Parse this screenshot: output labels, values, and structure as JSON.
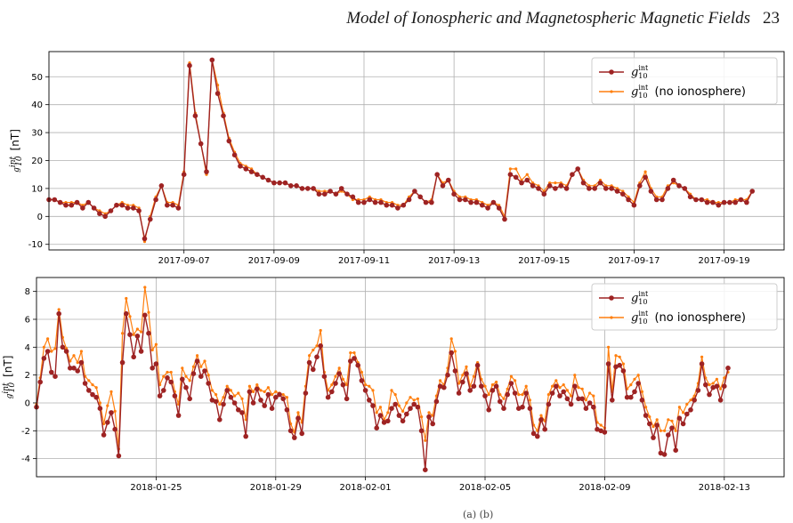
{
  "header": {
    "running_title": "Model of Ionospheric and Magnetospheric Magnetic Fields",
    "page_number": "23"
  },
  "caption_fragment": "(a) (b)",
  "colors": {
    "series_with": "#9e2323",
    "series_without": "#ff7f0e",
    "grid": "#b0b0b0"
  },
  "chart_data": [
    {
      "type": "line",
      "ylabel": "g_10^int [nT]",
      "ylim": [
        -12,
        59
      ],
      "yticks": [
        -10,
        0,
        10,
        20,
        30,
        40,
        50
      ],
      "x_range": [
        "2017-09-04T00:00",
        "2017-09-20T08:00"
      ],
      "x_step_hours": 3,
      "xticks": [
        "2017-09-07",
        "2017-09-09",
        "2017-09-11",
        "2017-09-13",
        "2017-09-15",
        "2017-09-17",
        "2017-09-19"
      ],
      "grid": true,
      "legend_position": "upper right",
      "series": [
        {
          "name": "g_10^int",
          "marker": "circle",
          "values": [
            6,
            6,
            5,
            4,
            4,
            5,
            3,
            5,
            3,
            1,
            0,
            2,
            4,
            4,
            3,
            3,
            2,
            -8,
            -1,
            6,
            11,
            4,
            4,
            3,
            15,
            54,
            36,
            26,
            16,
            56,
            44,
            36,
            27,
            22,
            18,
            17,
            16,
            15,
            14,
            13,
            12,
            12,
            12,
            11,
            11,
            10,
            10,
            10,
            8,
            8,
            9,
            8,
            10,
            8,
            7,
            5,
            5,
            6,
            5,
            5,
            4,
            4,
            3,
            4,
            6,
            9,
            7,
            5,
            5,
            15,
            11,
            13,
            8,
            6,
            6,
            5,
            5,
            4,
            3,
            5,
            3,
            -1,
            15,
            14,
            12,
            13,
            11,
            10,
            8,
            11,
            10,
            11,
            10,
            15,
            17,
            12,
            10,
            10,
            12,
            10,
            10,
            9,
            8,
            6,
            4,
            11,
            14,
            9,
            6,
            6,
            10,
            13,
            11,
            10,
            7,
            6,
            6,
            5,
            5,
            4,
            5,
            5,
            5,
            6,
            5,
            9
          ]
        },
        {
          "name": "g_10^int (no ionosphere)",
          "marker": "small-circle",
          "values": [
            6,
            6,
            5,
            5,
            5,
            5,
            4,
            5,
            3,
            2,
            1,
            2,
            4,
            5,
            4,
            4,
            3,
            -9,
            0,
            7,
            11,
            5,
            5,
            4,
            16,
            55,
            37,
            26,
            15,
            56,
            47,
            37,
            28,
            23,
            19,
            18,
            17,
            15,
            14,
            13,
            12,
            12,
            12,
            11,
            11,
            10,
            10,
            10,
            9,
            9,
            9,
            8,
            9,
            8,
            6,
            6,
            6,
            7,
            6,
            6,
            5,
            5,
            4,
            4,
            7,
            9,
            7,
            5,
            6,
            15,
            12,
            13,
            9,
            7,
            7,
            6,
            6,
            5,
            4,
            5,
            4,
            0,
            17,
            17,
            13,
            15,
            12,
            11,
            9,
            12,
            12,
            12,
            11,
            15,
            17,
            13,
            11,
            11,
            13,
            11,
            11,
            10,
            9,
            7,
            5,
            12,
            16,
            10,
            7,
            7,
            11,
            12,
            11,
            10,
            8,
            6,
            6,
            6,
            5,
            5,
            5,
            5,
            6,
            6,
            6,
            9
          ]
        }
      ]
    },
    {
      "type": "line",
      "ylabel": "g_10^int [nT]",
      "ylim": [
        -5.3,
        9.0
      ],
      "yticks": [
        -4,
        -2,
        0,
        2,
        4,
        6,
        8
      ],
      "x_range": [
        "2018-01-21T00:00",
        "2018-02-15T00:00"
      ],
      "x_step_hours": 3,
      "xticks": [
        "2018-01-25",
        "2018-01-29",
        "2018-02-01",
        "2018-02-05",
        "2018-02-09",
        "2018-02-13"
      ],
      "grid": true,
      "legend_position": "upper right",
      "series": [
        {
          "name": "g_10^int",
          "marker": "circle",
          "values": [
            -0.3,
            1.5,
            3.2,
            3.7,
            2.2,
            1.9,
            6.4,
            4.0,
            3.7,
            2.5,
            2.5,
            2.3,
            2.9,
            1.4,
            0.9,
            0.6,
            0.4,
            -0.4,
            -2.3,
            -1.4,
            -0.7,
            -1.9,
            -3.8,
            2.9,
            6.4,
            4.9,
            3.3,
            4.8,
            3.7,
            6.3,
            5.0,
            2.5,
            2.8,
            0.5,
            0.9,
            1.8,
            1.5,
            0.5,
            -0.9,
            1.7,
            1.1,
            0.3,
            2.1,
            3.0,
            1.9,
            2.3,
            1.4,
            0.2,
            0.1,
            -1.2,
            -0.1,
            0.9,
            0.4,
            0.0,
            -0.5,
            -0.7,
            -2.4,
            0.8,
            0.0,
            1.0,
            0.2,
            -0.2,
            0.6,
            -0.4,
            0.4,
            0.6,
            0.3,
            -0.5,
            -2.0,
            -2.5,
            -1.1,
            -2.2,
            0.7,
            2.9,
            2.4,
            3.3,
            4.1,
            1.9,
            0.4,
            0.8,
            1.4,
            2.1,
            1.3,
            0.3,
            3.0,
            3.2,
            2.7,
            1.6,
            0.9,
            0.2,
            -0.2,
            -1.8,
            -0.9,
            -1.4,
            -1.3,
            -0.4,
            -0.1,
            -0.9,
            -1.3,
            -0.8,
            -0.4,
            -0.1,
            -0.3,
            -2.0,
            -4.8,
            -1.0,
            -1.5,
            0.1,
            1.2,
            1.1,
            2.0,
            3.6,
            2.3,
            0.7,
            1.5,
            2.1,
            0.9,
            1.2,
            2.7,
            1.2,
            0.5,
            -0.5,
            0.9,
            1.2,
            0.1,
            -0.4,
            0.6,
            1.4,
            0.7,
            -0.4,
            -0.3,
            0.7,
            -0.4,
            -2.2,
            -2.4,
            -1.2,
            -1.9,
            -0.1,
            0.7,
            1.2,
            0.5,
            0.8,
            0.3,
            -0.1,
            1.2,
            0.3,
            0.3,
            -0.4,
            0.0,
            -0.3,
            -1.9,
            -2.0,
            -2.1,
            2.8,
            0.2,
            2.6,
            2.7,
            2.3,
            0.4,
            0.4,
            0.8,
            1.4,
            0.2,
            -0.9,
            -1.5,
            -2.5,
            -1.6,
            -3.6,
            -3.7,
            -2.3,
            -1.8,
            -3.4,
            -1.1,
            -1.5,
            -0.8,
            -0.5,
            0.2,
            0.9,
            2.8,
            1.3,
            0.6,
            1.1,
            1.2,
            0.2,
            1.2,
            2.5
          ]
        },
        {
          "name": "g_10^int (no ionosphere)",
          "marker": "small-circle",
          "values": [
            -0.1,
            1.8,
            4.0,
            4.6,
            3.7,
            3.9,
            6.7,
            4.7,
            3.9,
            3.0,
            3.4,
            2.9,
            3.7,
            1.9,
            1.6,
            1.3,
            1.1,
            0.0,
            -1.5,
            -0.2,
            0.8,
            -0.6,
            -3.3,
            5.0,
            7.5,
            6.2,
            4.9,
            5.3,
            5.1,
            8.3,
            6.5,
            3.8,
            4.2,
            1.3,
            1.9,
            2.2,
            2.2,
            0.8,
            -0.1,
            2.5,
            1.9,
            1.6,
            2.6,
            3.4,
            2.6,
            3.0,
            2.0,
            0.9,
            0.6,
            -0.1,
            0.4,
            1.2,
            0.9,
            0.5,
            0.7,
            0.3,
            -1.2,
            1.2,
            0.8,
            1.3,
            0.9,
            0.8,
            1.1,
            0.6,
            0.8,
            0.7,
            0.6,
            0.4,
            -1.5,
            -2.1,
            -0.7,
            -1.4,
            1.2,
            3.4,
            3.8,
            4.1,
            5.2,
            2.2,
            0.9,
            1.3,
            1.9,
            2.5,
            1.7,
            1.3,
            3.6,
            3.6,
            2.9,
            2.2,
            1.3,
            1.2,
            0.9,
            -0.7,
            -0.3,
            -1.2,
            -0.7,
            0.9,
            0.6,
            -0.2,
            -0.6,
            0.0,
            0.4,
            0.2,
            0.3,
            -1.0,
            -2.7,
            -0.7,
            -0.9,
            0.5,
            1.6,
            1.3,
            2.5,
            4.6,
            3.7,
            1.4,
            2.0,
            2.6,
            1.2,
            1.9,
            2.9,
            1.7,
            1.2,
            0.6,
            1.3,
            1.5,
            0.6,
            0.3,
            1.0,
            1.9,
            1.6,
            0.6,
            0.6,
            1.2,
            0.2,
            -1.6,
            -2.0,
            -0.9,
            -1.3,
            0.6,
            1.2,
            1.6,
            1.1,
            1.3,
            0.9,
            0.5,
            2.0,
            1.1,
            1.0,
            0.2,
            0.7,
            0.5,
            -1.4,
            -1.6,
            -1.8,
            4.0,
            0.8,
            3.4,
            3.3,
            2.8,
            1.0,
            1.3,
            1.7,
            2.0,
            0.8,
            -0.3,
            -1.0,
            -1.7,
            -1.2,
            -2.0,
            -2.0,
            -1.2,
            -1.3,
            -2.0,
            -0.3,
            -0.7,
            -0.1,
            0.2,
            0.5,
            1.4,
            3.3,
            1.8,
            1.3,
            1.4,
            1.7,
            1.0,
            1.8,
            2.2
          ]
        }
      ]
    }
  ]
}
